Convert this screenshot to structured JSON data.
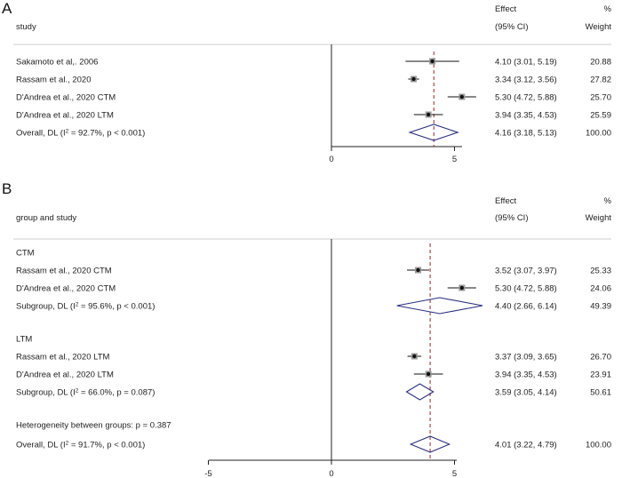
{
  "chart_data": [
    {
      "type": "forest",
      "panel_label": "A",
      "column_headers": {
        "label": "study",
        "effect_line1": "Effect",
        "effect_line2": "(95% CI)",
        "weight_line1": "%",
        "weight_line2": "Weight"
      },
      "xlim": [
        -10,
        10
      ],
      "ticks": [
        {
          "value": 0,
          "label": "0"
        },
        {
          "value": 5,
          "label": "5"
        }
      ],
      "overall_line": 4.16,
      "rows": [
        {
          "label": "Sakamoto et al,. 2006",
          "kind": "study",
          "est": 4.1,
          "lo": 3.01,
          "hi": 5.19,
          "ci_text": "4.10 (3.01, 5.19)",
          "weight": "20.88"
        },
        {
          "label": "Rassam et al., 2020",
          "kind": "study",
          "est": 3.34,
          "lo": 3.12,
          "hi": 3.56,
          "ci_text": "3.34 (3.12, 3.56)",
          "weight": "27.82"
        },
        {
          "label": "D'Andrea et al., 2020 CTM",
          "kind": "study",
          "est": 5.3,
          "lo": 4.72,
          "hi": 5.88,
          "ci_text": "5.30 (4.72, 5.88)",
          "weight": "25.70"
        },
        {
          "label": "D'Andrea et al., 2020 LTM",
          "kind": "study",
          "est": 3.94,
          "lo": 3.35,
          "hi": 4.53,
          "ci_text": "3.94 (3.35, 4.53)",
          "weight": "25.59"
        },
        {
          "label": "Overall, DL (I² = 92.7%, p < 0.001)",
          "kind": "diamond",
          "est": 4.16,
          "lo": 3.18,
          "hi": 5.13,
          "ci_text": "4.16 (3.18, 5.13)",
          "weight": "100.00"
        }
      ]
    },
    {
      "type": "forest",
      "panel_label": "B",
      "column_headers": {
        "label": "group and study",
        "effect_line1": "Effect",
        "effect_line2": "(95% CI)",
        "weight_line1": "%",
        "weight_line2": "Weight"
      },
      "xlim": [
        -10,
        10
      ],
      "ticks": [
        {
          "value": -5,
          "label": "-5"
        },
        {
          "value": 0,
          "label": "0"
        },
        {
          "value": 5,
          "label": "5"
        }
      ],
      "overall_line": 4.01,
      "rows": [
        {
          "label": "CTM",
          "kind": "header"
        },
        {
          "label": "Rassam et al., 2020 CTM",
          "kind": "study",
          "est": 3.52,
          "lo": 3.07,
          "hi": 3.97,
          "ci_text": "3.52 (3.07, 3.97)",
          "weight": "25.33"
        },
        {
          "label": "D'Andrea et al., 2020 CTM",
          "kind": "study",
          "est": 5.3,
          "lo": 4.72,
          "hi": 5.88,
          "ci_text": "5.30 (4.72, 5.88)",
          "weight": "24.06"
        },
        {
          "label": "Subgroup, DL (I² = 95.6%, p < 0.001)",
          "kind": "diamond",
          "est": 4.4,
          "lo": 2.66,
          "hi": 6.14,
          "ci_text": "4.40 (2.66, 6.14)",
          "weight": "49.39"
        },
        {
          "label": "LTM",
          "kind": "header"
        },
        {
          "label": "Rassam et al., 2020 LTM",
          "kind": "study",
          "est": 3.37,
          "lo": 3.09,
          "hi": 3.65,
          "ci_text": "3.37 (3.09, 3.65)",
          "weight": "26.70"
        },
        {
          "label": "D'Andrea et al., 2020 LTM",
          "kind": "study",
          "est": 3.94,
          "lo": 3.35,
          "hi": 4.53,
          "ci_text": "3.94 (3.35, 4.53)",
          "weight": "23.91"
        },
        {
          "label": "Subgroup, DL (I² = 66.0%, p = 0.087)",
          "kind": "diamond",
          "est": 3.59,
          "lo": 3.05,
          "hi": 4.14,
          "ci_text": "3.59 (3.05, 4.14)",
          "weight": "50.61"
        },
        {
          "label": "Heterogeneity between groups: p = 0.387",
          "kind": "note"
        },
        {
          "label": "Overall, DL (I² = 91.7%, p < 0.001)",
          "kind": "diamond",
          "est": 4.01,
          "lo": 3.22,
          "hi": 4.79,
          "ci_text": "4.01 (3.22, 4.79)",
          "weight": "100.00"
        }
      ]
    }
  ],
  "colors": {
    "diamond": "#2b2f7e",
    "overall_line": "#8b2a2a",
    "marker": "#111111",
    "axis": "#222222",
    "separator": "#cfcfcf"
  }
}
